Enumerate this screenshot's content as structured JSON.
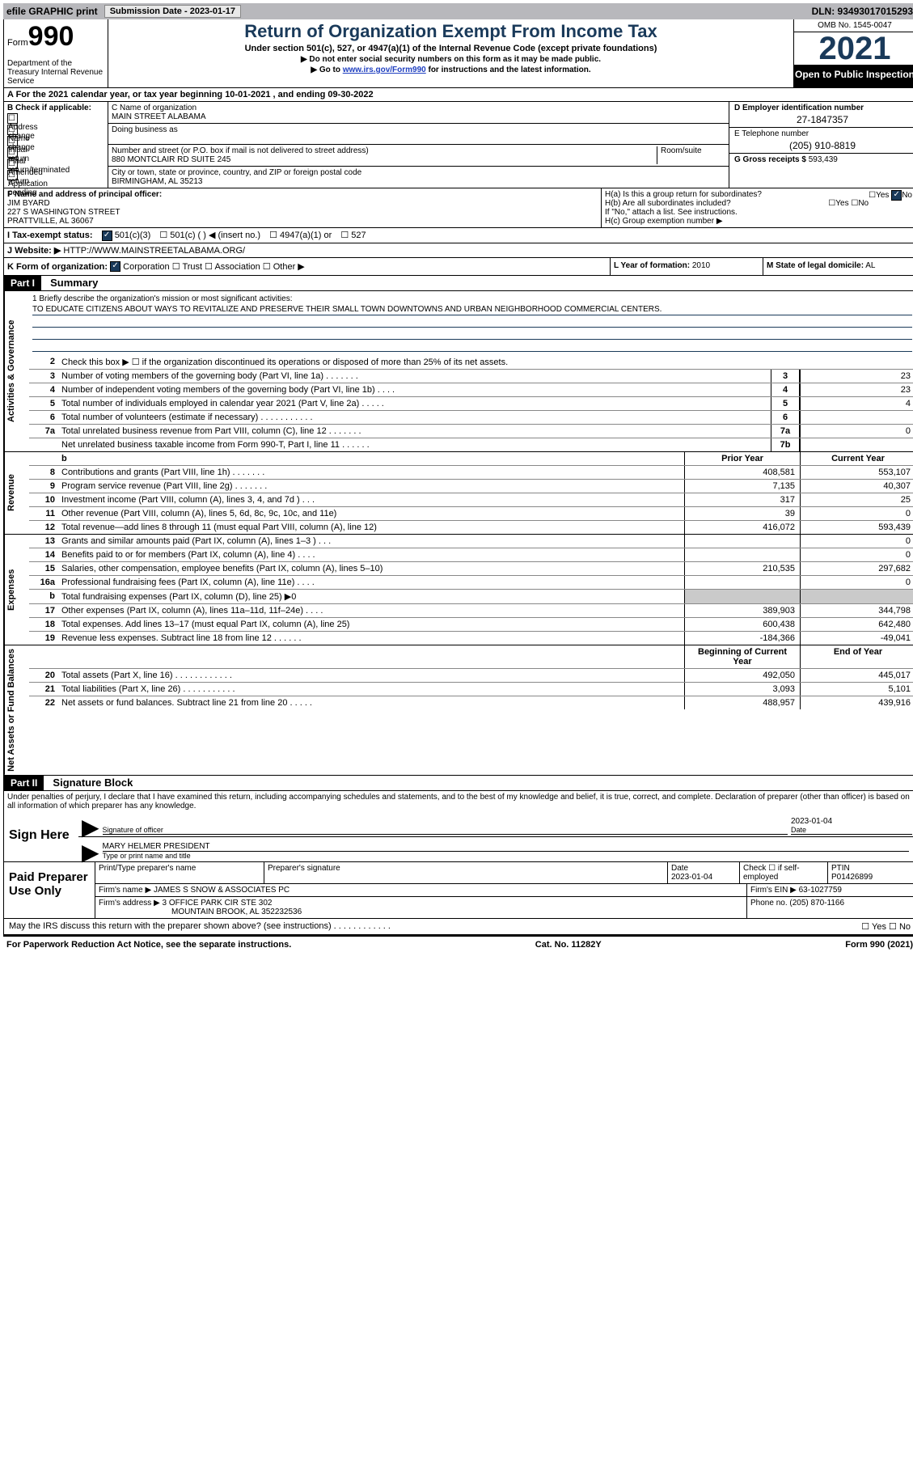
{
  "top": {
    "efile": "efile GRAPHIC print",
    "submission": "Submission Date - 2023-01-17",
    "dln": "DLN: 93493017015293"
  },
  "header": {
    "form": "Form",
    "num": "990",
    "dept": "Department of the Treasury Internal Revenue Service",
    "title": "Return of Organization Exempt From Income Tax",
    "sub": "Under section 501(c), 527, or 4947(a)(1) of the Internal Revenue Code (except private foundations)",
    "inst1": "▶ Do not enter social security numbers on this form as it may be made public.",
    "inst2_pre": "▶ Go to ",
    "inst2_link": "www.irs.gov/Form990",
    "inst2_post": " for instructions and the latest information.",
    "omb": "OMB No. 1545-0047",
    "year": "2021",
    "open": "Open to Public Inspection"
  },
  "rowA": "A For the 2021 calendar year, or tax year beginning 10-01-2021    , and ending 09-30-2022",
  "colB": {
    "hdr": "B Check if applicable:",
    "opt1": "Address change",
    "opt2": "Name change",
    "opt3": "Initial return",
    "opt4": "Final return/terminated",
    "opt5": "Amended return",
    "opt6": "Application pending"
  },
  "colC": {
    "name_lbl": "C Name of organization",
    "name": "MAIN STREET ALABAMA",
    "dba_lbl": "Doing business as",
    "street_lbl": "Number and street (or P.O. box if mail is not delivered to street address)",
    "street": "880 MONTCLAIR RD SUITE 245",
    "room_lbl": "Room/suite",
    "city_lbl": "City or town, state or province, country, and ZIP or foreign postal code",
    "city": "BIRMINGHAM, AL  35213"
  },
  "colD": {
    "ein_lbl": "D Employer identification number",
    "ein": "27-1847357",
    "tel_lbl": "E Telephone number",
    "tel": "(205) 910-8819",
    "gross_lbl": "G Gross receipts $",
    "gross": "593,439"
  },
  "secF": {
    "lbl": "F Name and address of principal officer:",
    "name": "JIM BYARD",
    "addr1": "227 S WASHINGTON STREET",
    "addr2": "PRATTVILLE, AL  36067",
    "ha": "H(a)  Is this a group return for subordinates?",
    "hb": "H(b)  Are all subordinates included?",
    "hb_note": "If \"No,\" attach a list. See instructions.",
    "hc": "H(c)  Group exemption number ▶",
    "yes": "Yes",
    "no": "No"
  },
  "rowI": {
    "lbl": "I   Tax-exempt status:",
    "o1": "501(c)(3)",
    "o2": "501(c) (   ) ◀ (insert no.)",
    "o3": "4947(a)(1) or",
    "o4": "527"
  },
  "rowJ": {
    "lbl": "J   Website: ▶",
    "val": "HTTP://WWW.MAINSTREETALABAMA.ORG/"
  },
  "rowK": {
    "lbl": "K Form of organization:",
    "o1": "Corporation",
    "o2": "Trust",
    "o3": "Association",
    "o4": "Other ▶",
    "l_lbl": "L Year of formation:",
    "l_val": "2010",
    "m_lbl": "M State of legal domicile:",
    "m_val": "AL"
  },
  "part1": {
    "hdr": "Part I",
    "title": "Summary",
    "mission_lbl": "1   Briefly describe the organization's mission or most significant activities:",
    "mission": "TO EDUCATE CITIZENS ABOUT WAYS TO REVITALIZE AND PRESERVE THEIR SMALL TOWN DOWNTOWNS AND URBAN NEIGHBORHOOD COMMERCIAL CENTERS.",
    "l2": "Check this box ▶ ☐  if the organization discontinued its operations or disposed of more than 25% of its net assets.",
    "lines": [
      {
        "n": "3",
        "d": "Number of voting members of the governing body (Part VI, line 1a)   .    .    .    .    .    .    .",
        "box": "3",
        "v": "23"
      },
      {
        "n": "4",
        "d": "Number of independent voting members of the governing body (Part VI, line 1b)   .    .    .    .",
        "box": "4",
        "v": "23"
      },
      {
        "n": "5",
        "d": "Total number of individuals employed in calendar year 2021 (Part V, line 2a)   .    .    .    .    .",
        "box": "5",
        "v": "4"
      },
      {
        "n": "6",
        "d": "Total number of volunteers (estimate if necessary)    .    .    .    .    .    .    .    .    .    .    .",
        "box": "6",
        "v": ""
      },
      {
        "n": "7a",
        "d": "Total unrelated business revenue from Part VIII, column (C), line 12   .    .    .    .    .    .    .",
        "box": "7a",
        "v": "0"
      },
      {
        "n": "",
        "d": "Net unrelated business taxable income from Form 990-T, Part I, line 11   .    .    .    .    .    .",
        "box": "7b",
        "v": ""
      }
    ],
    "prior": "Prior Year",
    "current": "Current Year",
    "revenue": [
      {
        "n": "8",
        "d": "Contributions and grants (Part VIII, line 1h)   .    .    .    .    .    .    .",
        "p": "408,581",
        "c": "553,107"
      },
      {
        "n": "9",
        "d": "Program service revenue (Part VIII, line 2g)   .    .    .    .    .    .    .",
        "p": "7,135",
        "c": "40,307"
      },
      {
        "n": "10",
        "d": "Investment income (Part VIII, column (A), lines 3, 4, and 7d )   .    .    .",
        "p": "317",
        "c": "25"
      },
      {
        "n": "11",
        "d": "Other revenue (Part VIII, column (A), lines 5, 6d, 8c, 9c, 10c, and 11e)",
        "p": "39",
        "c": "0"
      },
      {
        "n": "12",
        "d": "Total revenue—add lines 8 through 11 (must equal Part VIII, column (A), line 12)",
        "p": "416,072",
        "c": "593,439"
      }
    ],
    "expenses": [
      {
        "n": "13",
        "d": "Grants and similar amounts paid (Part IX, column (A), lines 1–3 )   .    .    .",
        "p": "",
        "c": "0"
      },
      {
        "n": "14",
        "d": "Benefits paid to or for members (Part IX, column (A), line 4)   .    .    .    .",
        "p": "",
        "c": "0"
      },
      {
        "n": "15",
        "d": "Salaries, other compensation, employee benefits (Part IX, column (A), lines 5–10)",
        "p": "210,535",
        "c": "297,682"
      },
      {
        "n": "16a",
        "d": "Professional fundraising fees (Part IX, column (A), line 11e)   .    .    .    .",
        "p": "",
        "c": "0"
      },
      {
        "n": "b",
        "d": "Total fundraising expenses (Part IX, column (D), line 25) ▶0",
        "p": "",
        "c": "",
        "shaded": true
      },
      {
        "n": "17",
        "d": "Other expenses (Part IX, column (A), lines 11a–11d, 11f–24e)   .    .    .    .",
        "p": "389,903",
        "c": "344,798"
      },
      {
        "n": "18",
        "d": "Total expenses. Add lines 13–17 (must equal Part IX, column (A), line 25)",
        "p": "600,438",
        "c": "642,480"
      },
      {
        "n": "19",
        "d": "Revenue less expenses. Subtract line 18 from line 12   .    .    .    .    .    .",
        "p": "-184,366",
        "c": "-49,041"
      }
    ],
    "begin": "Beginning of Current Year",
    "end": "End of Year",
    "assets": [
      {
        "n": "20",
        "d": "Total assets (Part X, line 16)   .    .    .    .    .    .    .    .    .    .    .    .",
        "p": "492,050",
        "c": "445,017"
      },
      {
        "n": "21",
        "d": "Total liabilities (Part X, line 26)   .    .    .    .    .    .    .    .    .    .    .",
        "p": "3,093",
        "c": "5,101"
      },
      {
        "n": "22",
        "d": "Net assets or fund balances. Subtract line 21 from line 20   .    .    .    .    .",
        "p": "488,957",
        "c": "439,916"
      }
    ]
  },
  "part2": {
    "hdr": "Part II",
    "title": "Signature Block",
    "declare": "Under penalties of perjury, I declare that I have examined this return, including accompanying schedules and statements, and to the best of my knowledge and belief, it is true, correct, and complete. Declaration of preparer (other than officer) is based on all information of which preparer has any knowledge.",
    "sign_here": "Sign Here",
    "sig_officer": "Signature of officer",
    "sig_date": "2023-01-04",
    "date_lbl": "Date",
    "name": "MARY HELMER  PRESIDENT",
    "name_lbl": "Type or print name and title",
    "paid": "Paid Preparer Use Only",
    "prep_name_lbl": "Print/Type preparer's name",
    "prep_sig_lbl": "Preparer's signature",
    "prep_date_lbl": "Date",
    "prep_date": "2023-01-04",
    "check_lbl": "Check ☐ if self-employed",
    "ptin_lbl": "PTIN",
    "ptin": "P01426899",
    "firm_name_lbl": "Firm's name    ▶",
    "firm_name": "JAMES S SNOW & ASSOCIATES PC",
    "firm_ein_lbl": "Firm's EIN ▶",
    "firm_ein": "63-1027759",
    "firm_addr_lbl": "Firm's address ▶",
    "firm_addr1": "3 OFFICE PARK CIR STE 302",
    "firm_addr2": "MOUNTAIN BROOK, AL  352232536",
    "phone_lbl": "Phone no.",
    "phone": "(205) 870-1166"
  },
  "discuss": "May the IRS discuss this return with the preparer shown above? (see instructions)   .    .    .    .    .    .    .    .    .    .    .    .",
  "footer": {
    "left": "For Paperwork Reduction Act Notice, see the separate instructions.",
    "mid": "Cat. No. 11282Y",
    "right": "Form 990 (2021)"
  },
  "tabs": {
    "gov": "Activities & Governance",
    "rev": "Revenue",
    "exp": "Expenses",
    "net": "Net Assets or Fund Balances"
  }
}
